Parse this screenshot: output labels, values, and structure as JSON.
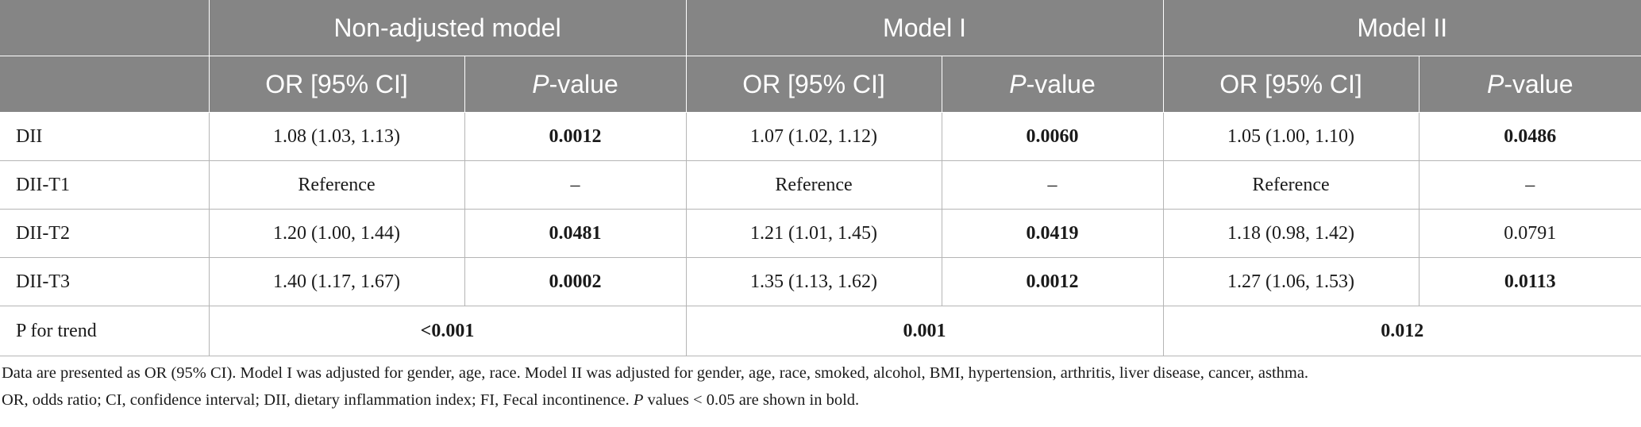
{
  "header": {
    "groups": [
      "Non-adjusted model",
      "Model I",
      "Model II"
    ],
    "col_or": "OR [95% CI]",
    "col_p_italic": "P",
    "col_p_rest": "-value"
  },
  "rows": [
    {
      "label": "DII",
      "cells": [
        "1.08 (1.03, 1.13)",
        "0.0012",
        "1.07 (1.02, 1.12)",
        "0.0060",
        "1.05 (1.00, 1.10)",
        "0.0486"
      ],
      "bold": [
        false,
        true,
        false,
        true,
        false,
        true
      ]
    },
    {
      "label": "DII-T1",
      "cells": [
        "Reference",
        "–",
        "Reference",
        "–",
        "Reference",
        "–"
      ],
      "bold": [
        false,
        false,
        false,
        false,
        false,
        false
      ]
    },
    {
      "label": "DII-T2",
      "cells": [
        "1.20 (1.00, 1.44)",
        "0.0481",
        "1.21 (1.01, 1.45)",
        "0.0419",
        "1.18 (0.98, 1.42)",
        "0.0791"
      ],
      "bold": [
        false,
        true,
        false,
        true,
        false,
        false
      ]
    },
    {
      "label": "DII-T3",
      "cells": [
        "1.40 (1.17, 1.67)",
        "0.0002",
        "1.35 (1.13, 1.62)",
        "0.0012",
        "1.27 (1.06, 1.53)",
        "0.0113"
      ],
      "bold": [
        false,
        true,
        false,
        true,
        false,
        true
      ]
    }
  ],
  "trend": {
    "label": "P for trend",
    "values": [
      "<0.001",
      "0.001",
      "0.012"
    ]
  },
  "notes": {
    "line1": "Data are presented as OR (95% CI). Model I was adjusted for gender, age, race. Model II was adjusted for gender, age, race, smoked, alcohol, BMI, hypertension, arthritis, liver disease, cancer, asthma.",
    "line2_a": "OR, odds ratio; CI, confidence interval; DII, dietary inflammation index; FI, Fecal incontinence. ",
    "line2_p": "P",
    "line2_b": " values < 0.05 are shown in bold."
  }
}
